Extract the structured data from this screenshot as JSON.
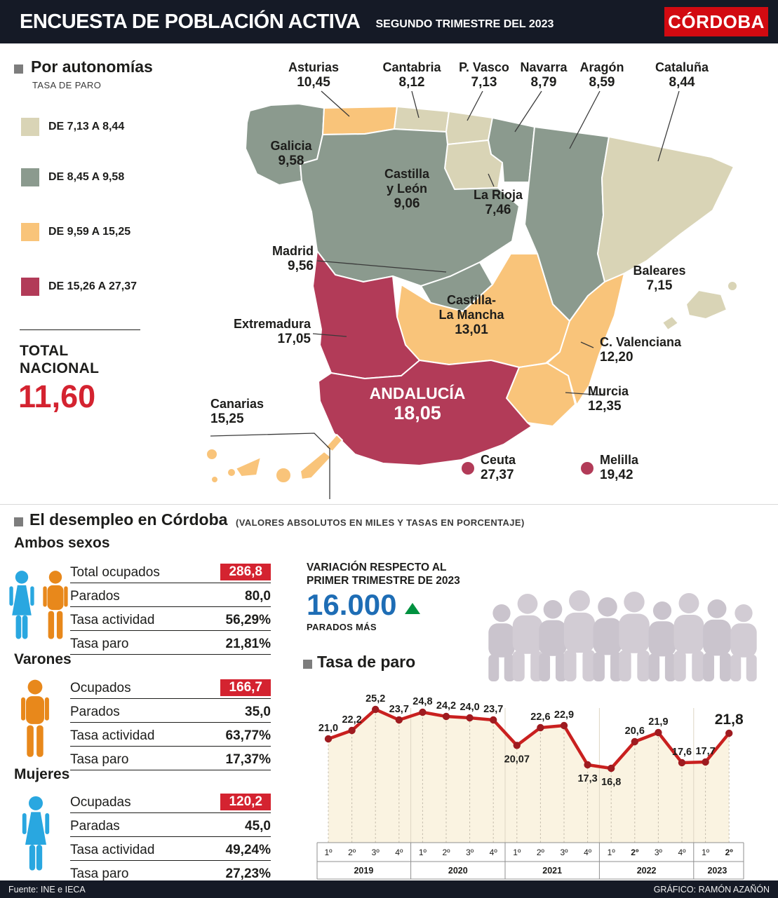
{
  "header": {
    "title": "ENCUESTA DE POBLACIÓN ACTIVA",
    "subtitle": "SEGUNDO TRIMESTRE DEL 2023",
    "logo": "CÓRDOBA",
    "bar_color": "#151a26",
    "logo_color": "#d20a11"
  },
  "map_section": {
    "title": "Por autonomías",
    "subtitle": "TASA DE PARO",
    "legend": [
      {
        "label": "DE 7,13 A 8,44",
        "color": "#d9d4b6"
      },
      {
        "label": "DE 8,45 A 9,58",
        "color": "#8b9a8e"
      },
      {
        "label": "DE 9,59 A 15,25",
        "color": "#f9c47a"
      },
      {
        "label": "DE 15,26 A 27,37",
        "color": "#b23b58"
      }
    ],
    "total_label_1": "TOTAL",
    "total_label_2": "NACIONAL",
    "total_value": "11,60",
    "total_color": "#d42330",
    "regions": [
      {
        "id": "galicia",
        "name": "Galicia",
        "value": "9,58",
        "color": "#8b9a8e",
        "inside": true
      },
      {
        "id": "asturias",
        "name": "Asturias",
        "value": "10,45",
        "color": "#f9c47a"
      },
      {
        "id": "cantabria",
        "name": "Cantabria",
        "value": "8,12",
        "color": "#d9d4b6"
      },
      {
        "id": "pvasco",
        "name": "P. Vasco",
        "value": "7,13",
        "color": "#d9d4b6"
      },
      {
        "id": "navarra",
        "name": "Navarra",
        "value": "8,79",
        "color": "#8b9a8e"
      },
      {
        "id": "larioja",
        "name": "La Rioja",
        "value": "7,46",
        "color": "#d9d4b6",
        "inside": true
      },
      {
        "id": "aragon",
        "name": "Aragón",
        "value": "8,59",
        "color": "#8b9a8e"
      },
      {
        "id": "cataluna",
        "name": "Cataluña",
        "value": "8,44",
        "color": "#d9d4b6"
      },
      {
        "id": "castilla-leon",
        "name": "Castilla y León",
        "lines": [
          "Castilla",
          "y León"
        ],
        "value": "9,06",
        "color": "#8b9a8e",
        "inside": true
      },
      {
        "id": "madrid",
        "name": "Madrid",
        "value": "9,56",
        "color": "#8b9a8e"
      },
      {
        "id": "castilla-mancha",
        "name": "Castilla-La Mancha",
        "lines": [
          "Castilla-",
          "La Mancha"
        ],
        "value": "13,01",
        "color": "#f9c47a",
        "inside": true
      },
      {
        "id": "extremadura",
        "name": "Extremadura",
        "value": "17,05",
        "color": "#b23b58"
      },
      {
        "id": "valenciana",
        "name": "C. Valenciana",
        "value": "12,20",
        "color": "#f9c47a"
      },
      {
        "id": "murcia",
        "name": "Murcia",
        "value": "12,35",
        "color": "#f9c47a"
      },
      {
        "id": "andalucia",
        "name": "ANDALUCÍA",
        "value": "18,05",
        "color": "#b23b58",
        "inside": true,
        "inverse": true
      },
      {
        "id": "baleares",
        "name": "Baleares",
        "value": "7,15",
        "color": "#d9d4b6"
      },
      {
        "id": "canarias",
        "name": "Canarias",
        "value": "15,25",
        "color": "#f9c47a"
      },
      {
        "id": "ceuta",
        "name": "Ceuta",
        "value": "27,37",
        "color": "#b23b58",
        "dot": true
      },
      {
        "id": "melilla",
        "name": "Melilla",
        "value": "19,42",
        "color": "#b23b58",
        "dot": true
      }
    ]
  },
  "stats": {
    "section_title": "El desempleo en Córdoba",
    "section_subtitle": "(VALORES ABSOLUTOS EN MILES Y TASAS EN PORCENTAJE)",
    "icon_colors": {
      "man": "#e8881b",
      "woman": "#29a7e0"
    },
    "groups": [
      {
        "title": "Ambos sexos",
        "icons": [
          "woman",
          "man"
        ],
        "rows": [
          {
            "label": "Total ocupados",
            "value": "286,8",
            "highlight": true
          },
          {
            "label": "Parados",
            "value": "80,0"
          },
          {
            "label": "Tasa actividad",
            "value": "56,29%"
          },
          {
            "label": "Tasa paro",
            "value": "21,81%"
          }
        ]
      },
      {
        "title": "Varones",
        "icons": [
          "man"
        ],
        "rows": [
          {
            "label": "Ocupados",
            "value": "166,7",
            "highlight": true
          },
          {
            "label": "Parados",
            "value": "35,0"
          },
          {
            "label": "Tasa actividad",
            "value": "63,77%"
          },
          {
            "label": "Tasa paro",
            "value": "17,37%"
          }
        ]
      },
      {
        "title": "Mujeres",
        "icons": [
          "woman"
        ],
        "rows": [
          {
            "label": "Ocupadas",
            "value": "120,2",
            "highlight": true
          },
          {
            "label": "Paradas",
            "value": "45,0"
          },
          {
            "label": "Tasa actividad",
            "value": "49,24%"
          },
          {
            "label": "Tasa paro",
            "value": "27,23%"
          }
        ]
      }
    ],
    "variation": {
      "line1": "VARIACIÓN RESPECTO AL",
      "line2": "PRIMER TRIMESTRE DE 2023",
      "value": "16.000",
      "value_color": "#1e6db5",
      "arrow_color": "#00913f",
      "caption": "PARADOS MÁS"
    }
  },
  "chart_data": {
    "type": "line",
    "title": "Tasa de paro",
    "x_quarters": [
      "1º",
      "2º",
      "3º",
      "4º",
      "1º",
      "2º",
      "3º",
      "4º",
      "1º",
      "2º",
      "3º",
      "4º",
      "1º",
      "2º",
      "3º",
      "4º",
      "1º",
      "2º"
    ],
    "years": [
      {
        "label": "2019",
        "quarters": 4
      },
      {
        "label": "2020",
        "quarters": 4
      },
      {
        "label": "2021",
        "quarters": 4
      },
      {
        "label": "2022",
        "quarters": 4
      },
      {
        "label": "2023",
        "quarters": 2
      }
    ],
    "values": [
      21.0,
      22.2,
      25.2,
      23.7,
      24.8,
      24.2,
      24.0,
      23.7,
      20.07,
      22.6,
      22.9,
      17.3,
      16.8,
      20.6,
      21.9,
      17.6,
      17.7,
      21.8
    ],
    "value_labels": [
      "21,0",
      "22,2",
      "25,2",
      "23,7",
      "24,8",
      "24,2",
      "24,0",
      "23,7",
      "20,07",
      "22,6",
      "22,9",
      "17,3",
      "16,8",
      "20,6",
      "21,9",
      "17,6",
      "17,7",
      "21,8"
    ],
    "labels_below_indices": [
      8,
      11,
      12
    ],
    "bold_value_indices": [
      13
    ],
    "big_value_indices": [
      17
    ],
    "bold_axis_indices": [
      13,
      17
    ],
    "ylim": [
      15,
      26
    ],
    "line_color": "#c9201f",
    "dot_color": "#9e1b20",
    "area_color": "#faf3e1",
    "grid": "dashed-vertical",
    "legend_position": "none"
  },
  "footer": {
    "left": "Fuente: INE e IECA",
    "right": "GRÁFICO: RAMÓN AZAÑÓN"
  }
}
